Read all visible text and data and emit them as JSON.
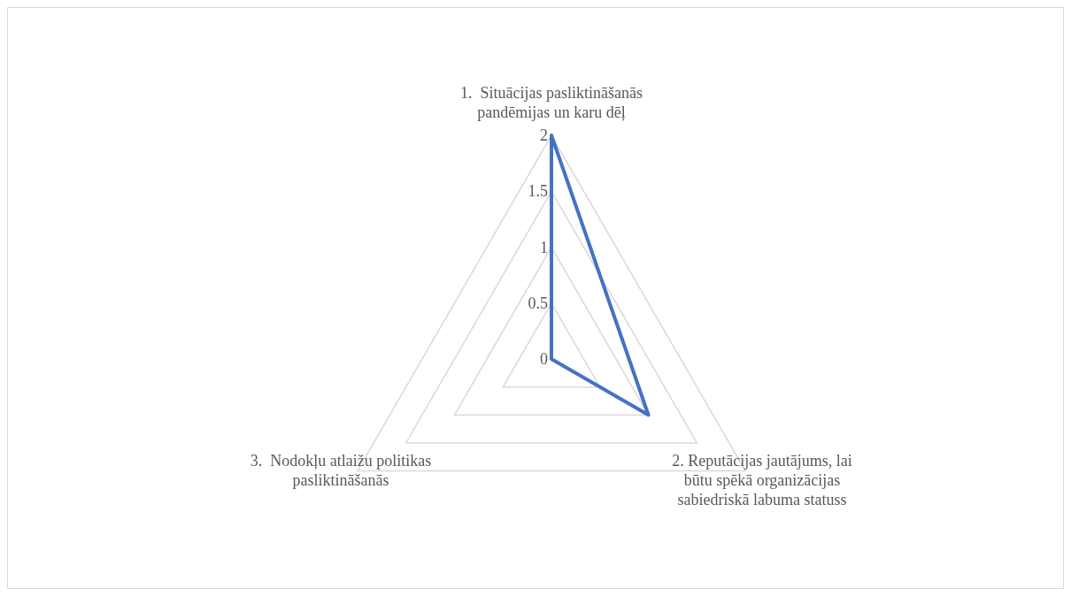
{
  "chart_data": {
    "type": "radar",
    "categories": [
      "1.  Situācijas pasliktināšanās pandēmijas un karu dēļ",
      "2. Reputācijas jautājums, lai būtu spēkā organizācijas sabiedriskā labuma statuss",
      "3.  Nodokļu atlaižu politikas pasliktināšanās"
    ],
    "series": [
      {
        "color": "#4472c4",
        "values": [
          2,
          1,
          0
        ]
      }
    ],
    "ylim": [
      0,
      2
    ],
    "yticks": [
      0,
      0.5,
      1,
      1.5,
      2
    ],
    "grid": true
  }
}
